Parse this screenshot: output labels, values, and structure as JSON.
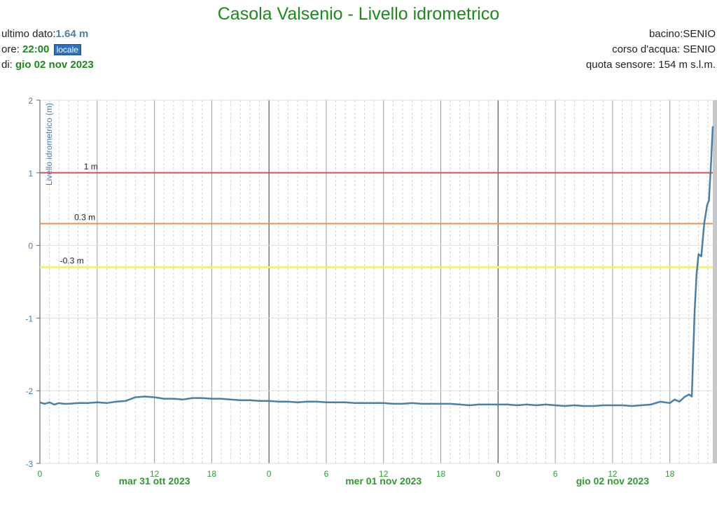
{
  "header": {
    "title": "Casola Valsenio - Livello idrometrico",
    "last_label": "ultimo dato:",
    "last_value": "1.64 m",
    "time_label": "ore:",
    "time_value": "22:00",
    "time_zone_badge": "locale",
    "date_label": "di:",
    "date_value": "gio 02 nov 2023",
    "basin": "bacino:SENIO",
    "river": "corso d'acqua: SENIO",
    "sensor_altitude": "quota sensore: 154 m s.l.m."
  },
  "chart_data": {
    "type": "line",
    "ylabel": "Livello idrometrico (m)",
    "ylim": [
      -3,
      2
    ],
    "yticks": [
      -3,
      -2,
      -1,
      0,
      1,
      2
    ],
    "x_unit": "hours",
    "xlim": [
      0,
      70.5
    ],
    "xticks": [
      {
        "hour": 0,
        "label": "0"
      },
      {
        "hour": 6,
        "label": "6"
      },
      {
        "hour": 12,
        "label": "12"
      },
      {
        "hour": 18,
        "label": "18"
      },
      {
        "hour": 24,
        "label": "0"
      },
      {
        "hour": 30,
        "label": "6"
      },
      {
        "hour": 36,
        "label": "12"
      },
      {
        "hour": 42,
        "label": "18"
      },
      {
        "hour": 48,
        "label": "0"
      },
      {
        "hour": 54,
        "label": "6"
      },
      {
        "hour": 60,
        "label": "12"
      },
      {
        "hour": 66,
        "label": "18"
      }
    ],
    "day_labels": [
      {
        "hour": 12,
        "label": "mar 31 ott 2023"
      },
      {
        "hour": 36,
        "label": "mer 01 nov 2023"
      },
      {
        "hour": 60,
        "label": "gio 02 nov 2023"
      }
    ],
    "thresholds": [
      {
        "value": 1,
        "label": "1 m",
        "color": "#d9534f"
      },
      {
        "value": 0.3,
        "label": "0.3 m",
        "color": "#e8924a"
      },
      {
        "value": -0.3,
        "label": "-0.3 m",
        "color": "#f2ef7a"
      }
    ],
    "series": [
      {
        "color": "#4a7fa8",
        "x": [
          0,
          0.5,
          1,
          1.5,
          2,
          2.5,
          3,
          4,
          5,
          6,
          7,
          8,
          9,
          10,
          11,
          12,
          13,
          14,
          15,
          16,
          17,
          18,
          19,
          20,
          21,
          22,
          23,
          24,
          25,
          26,
          27,
          28,
          29,
          30,
          31,
          32,
          33,
          34,
          35,
          36,
          37,
          38,
          39,
          40,
          41,
          42,
          43,
          44,
          45,
          46,
          47,
          48,
          49,
          50,
          51,
          52,
          53,
          54,
          55,
          56,
          57,
          58,
          59,
          60,
          61,
          62,
          63,
          64,
          65,
          66,
          66.5,
          67,
          67.5,
          68,
          68.3,
          68.6,
          68.8,
          69,
          69.3,
          69.6,
          69.9,
          70.1,
          70.3,
          70.5
        ],
        "y": [
          -2.16,
          -2.18,
          -2.16,
          -2.19,
          -2.17,
          -2.18,
          -2.18,
          -2.17,
          -2.17,
          -2.16,
          -2.17,
          -2.15,
          -2.14,
          -2.09,
          -2.08,
          -2.09,
          -2.11,
          -2.11,
          -2.12,
          -2.1,
          -2.1,
          -2.11,
          -2.11,
          -2.12,
          -2.13,
          -2.13,
          -2.14,
          -2.14,
          -2.15,
          -2.15,
          -2.16,
          -2.15,
          -2.15,
          -2.16,
          -2.16,
          -2.16,
          -2.17,
          -2.17,
          -2.17,
          -2.17,
          -2.18,
          -2.18,
          -2.17,
          -2.18,
          -2.18,
          -2.18,
          -2.18,
          -2.19,
          -2.2,
          -2.19,
          -2.19,
          -2.19,
          -2.19,
          -2.2,
          -2.19,
          -2.2,
          -2.19,
          -2.2,
          -2.21,
          -2.2,
          -2.21,
          -2.21,
          -2.2,
          -2.2,
          -2.2,
          -2.21,
          -2.2,
          -2.19,
          -2.15,
          -2.17,
          -2.12,
          -2.15,
          -2.09,
          -2.05,
          -2.08,
          -0.9,
          -0.4,
          -0.12,
          -0.15,
          0.3,
          0.55,
          0.62,
          1.1,
          1.64
        ]
      }
    ]
  }
}
